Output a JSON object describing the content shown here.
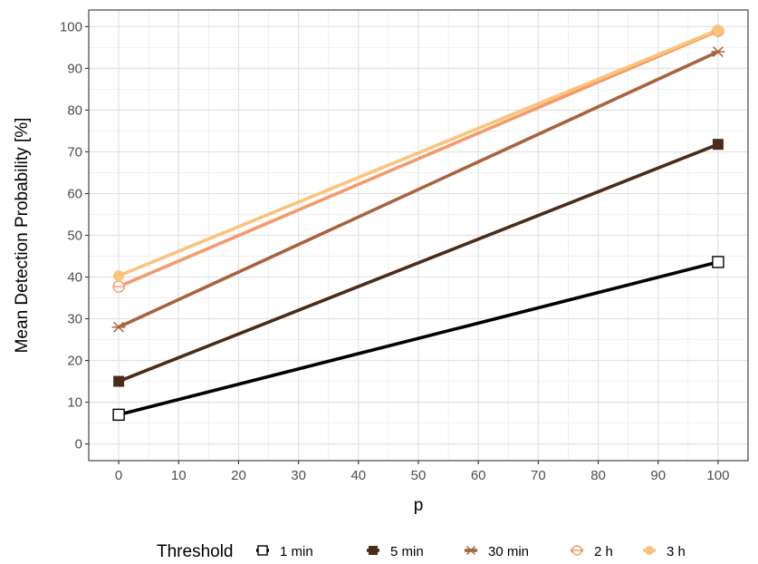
{
  "chart_data": {
    "type": "line",
    "xlabel": "p",
    "ylabel": "Mean Detection Probability [%]",
    "xlim": [
      -5,
      105
    ],
    "ylim": [
      -4,
      104
    ],
    "x_ticks": [
      0,
      10,
      20,
      30,
      40,
      50,
      60,
      70,
      80,
      90,
      100
    ],
    "y_ticks": [
      0,
      10,
      20,
      30,
      40,
      50,
      60,
      70,
      80,
      90,
      100
    ],
    "x_tick_labels": [
      "0",
      "10",
      "20",
      "30",
      "40",
      "50",
      "60",
      "70",
      "80",
      "90",
      "100"
    ],
    "y_tick_labels": [
      "0",
      "10",
      "20",
      "30",
      "40",
      "50",
      "60",
      "70",
      "80",
      "90",
      "100"
    ],
    "grid": true,
    "legend": {
      "title": "Threshold",
      "position": "bottom"
    },
    "x": [
      0,
      100
    ],
    "series": [
      {
        "name": "1 min",
        "values": [
          7,
          43.6
        ],
        "color": "#000000",
        "marker": "square-open"
      },
      {
        "name": "5 min",
        "values": [
          15,
          71.8
        ],
        "color": "#4a2c1a",
        "marker": "square-filled"
      },
      {
        "name": "30 min",
        "values": [
          28,
          94
        ],
        "color": "#a8633e",
        "marker": "asterisk"
      },
      {
        "name": "2 h",
        "values": [
          37.7,
          99
        ],
        "color": "#f4996a",
        "marker": "circle-open-crossed"
      },
      {
        "name": "3 h",
        "values": [
          40.3,
          99.2
        ],
        "color": "#fcc37a",
        "marker": "circle-filled"
      }
    ]
  }
}
